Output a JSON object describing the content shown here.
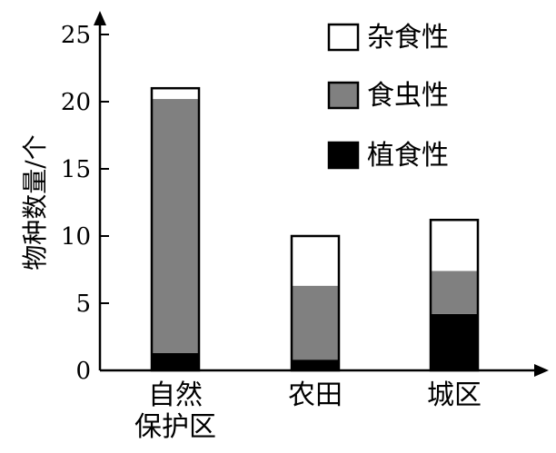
{
  "chart_data": {
    "type": "bar",
    "stacked": true,
    "categories": [
      [
        "自然",
        "保护区"
      ],
      [
        "农田"
      ],
      [
        "城区"
      ]
    ],
    "series": [
      {
        "name": "植食性",
        "color": "#000000",
        "values": [
          1.3,
          0.8,
          4.2
        ]
      },
      {
        "name": "食虫性",
        "color": "#808080",
        "values": [
          18.9,
          5.5,
          3.2
        ]
      },
      {
        "name": "杂食性",
        "color": "#ffffff",
        "values": [
          0.8,
          3.7,
          3.8
        ]
      }
    ],
    "legend_order": [
      2,
      1,
      0
    ],
    "legend_position": "top-right",
    "title": "",
    "xlabel": "",
    "ylabel": "物种数量/个",
    "ylim": [
      0,
      25
    ],
    "yticks": [
      0,
      5,
      10,
      15,
      20,
      25
    ],
    "grid": false
  }
}
